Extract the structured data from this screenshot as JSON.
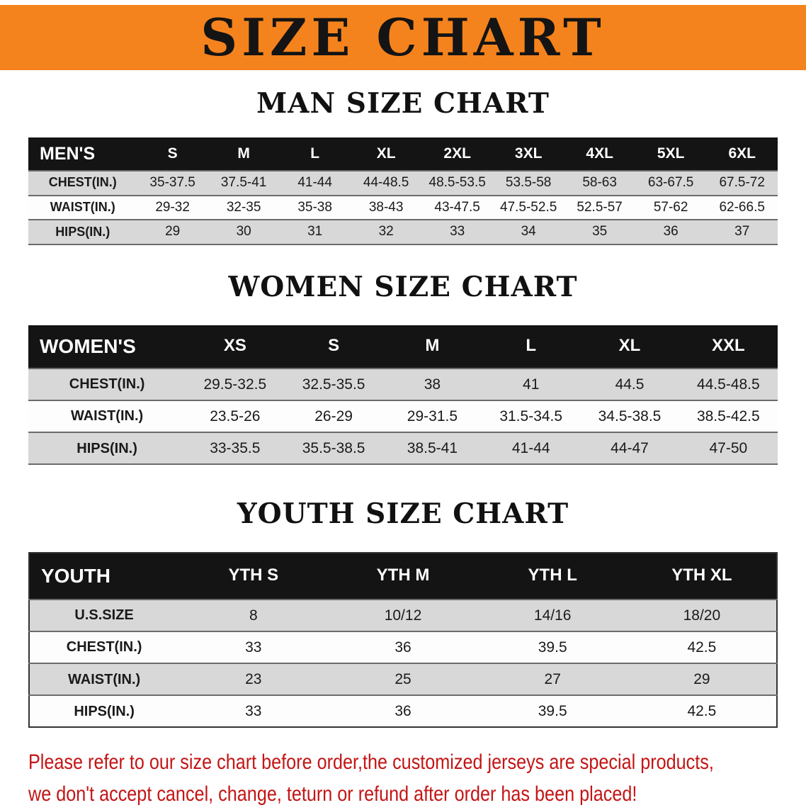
{
  "banner": {
    "title": "SIZE CHART",
    "bg_color": "#F5831D",
    "text_color": "#141414"
  },
  "sections": [
    {
      "heading": "MAN SIZE CHART",
      "table": {
        "label": "MEN'S",
        "columns": [
          "S",
          "M",
          "L",
          "XL",
          "2XL",
          "3XL",
          "4XL",
          "5XL",
          "6XL"
        ],
        "rows": [
          {
            "label": "CHEST(IN.)",
            "values": [
              "35-37.5",
              "37.5-41",
              "41-44",
              "44-48.5",
              "48.5-53.5",
              "53.5-58",
              "58-63",
              "63-67.5",
              "67.5-72"
            ]
          },
          {
            "label": "WAIST(IN.)",
            "values": [
              "29-32",
              "32-35",
              "35-38",
              "38-43",
              "43-47.5",
              "47.5-52.5",
              "52.5-57",
              "57-62",
              "62-66.5"
            ]
          },
          {
            "label": "HIPS(IN.)",
            "values": [
              "29",
              "30",
              "31",
              "32",
              "33",
              "34",
              "35",
              "36",
              "37"
            ]
          }
        ]
      }
    },
    {
      "heading": "WOMEN SIZE CHART",
      "table": {
        "label": "WOMEN'S",
        "columns": [
          "XS",
          "S",
          "M",
          "L",
          "XL",
          "XXL"
        ],
        "rows": [
          {
            "label": "CHEST(IN.)",
            "values": [
              "29.5-32.5",
              "32.5-35.5",
              "38",
              "41",
              "44.5",
              "44.5-48.5"
            ]
          },
          {
            "label": "WAIST(IN.)",
            "values": [
              "23.5-26",
              "26-29",
              "29-31.5",
              "31.5-34.5",
              "34.5-38.5",
              "38.5-42.5"
            ]
          },
          {
            "label": "HIPS(IN.)",
            "values": [
              "33-35.5",
              "35.5-38.5",
              "38.5-41",
              "41-44",
              "44-47",
              "47-50"
            ]
          }
        ]
      }
    },
    {
      "heading": "YOUTH SIZE CHART",
      "table": {
        "label": "YOUTH",
        "columns": [
          "YTH S",
          "YTH M",
          "YTH L",
          "YTH XL"
        ],
        "rows": [
          {
            "label": "U.S.SIZE",
            "values": [
              "8",
              "10/12",
              "14/16",
              "18/20"
            ]
          },
          {
            "label": "CHEST(IN.)",
            "values": [
              "33",
              "36",
              "39.5",
              "42.5"
            ]
          },
          {
            "label": "WAIST(IN.)",
            "values": [
              "23",
              "25",
              "27",
              "29"
            ]
          },
          {
            "label": "HIPS(IN.)",
            "values": [
              "33",
              "36",
              "39.5",
              "42.5"
            ]
          }
        ]
      }
    }
  ],
  "footer": {
    "line1": "Please refer to our size chart before order,the customized jerseys are special products,",
    "line2": "we don't accept cancel, change, teturn or refund after order has been placed!",
    "text_color": "#C41414"
  }
}
